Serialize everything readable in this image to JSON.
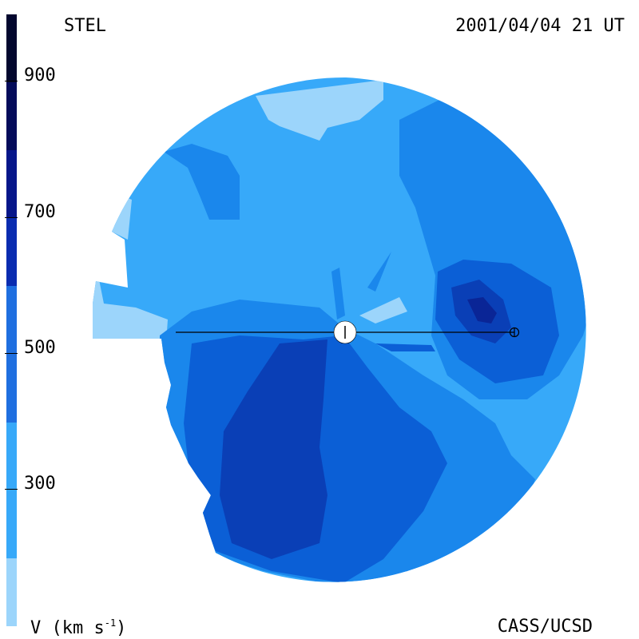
{
  "header": {
    "source": "STEL",
    "timestamp": "2001/04/04 21 UT"
  },
  "footer": {
    "units_prefix": "V (km s",
    "units_sup": "-1",
    "units_suffix": ")",
    "credit": "CASS/UCSD"
  },
  "colorbar": {
    "ticks": [
      "900",
      "700",
      "500",
      "300"
    ],
    "tick_values": [
      900,
      700,
      500,
      300
    ],
    "range": [
      100,
      1000
    ],
    "levels": [
      {
        "min": 100,
        "max": 200,
        "color": "#9cd5fb"
      },
      {
        "min": 200,
        "max": 400,
        "color": "#37a9f9"
      },
      {
        "min": 400,
        "max": 600,
        "color": "#1f6fe0"
      },
      {
        "min": 600,
        "max": 700,
        "color": "#0a2cb0"
      },
      {
        "min": 700,
        "max": 800,
        "color": "#06168a"
      },
      {
        "min": 800,
        "max": 900,
        "color": "#040c5a"
      },
      {
        "min": 900,
        "max": 1000,
        "color": "#02072e"
      }
    ]
  },
  "map_colors": {
    "v100": "#9cd5fb",
    "v200": "#37a9f9",
    "v300": "#1a87ec",
    "v400": "#0b5fd6",
    "v500": "#0a3fb6",
    "v600": "#0a2596",
    "sun": "#ffffff",
    "earth_line": "#000000"
  },
  "markers": {
    "sun": "sun-marker",
    "earth": "earth-marker"
  }
}
